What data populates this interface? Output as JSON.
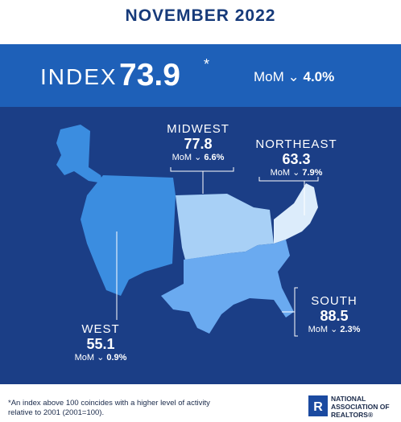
{
  "title": "NOVEMBER 2022",
  "index": {
    "label": "INDEX",
    "value": "73.9",
    "asterisk": "*",
    "mom_label": "MoM",
    "mom_value": "4.0%"
  },
  "regions": {
    "midwest": {
      "name": "MIDWEST",
      "value": "77.8",
      "mom_label": "MoM",
      "mom_value": "6.6%"
    },
    "northeast": {
      "name": "NORTHEAST",
      "value": "63.3",
      "mom_label": "MoM",
      "mom_value": "7.9%"
    },
    "south": {
      "name": "SOUTH",
      "value": "88.5",
      "mom_label": "MoM",
      "mom_value": "2.3%"
    },
    "west": {
      "name": "WEST",
      "value": "55.1",
      "mom_label": "MoM",
      "mom_value": "0.9%"
    }
  },
  "footnote": "*An index above 100 coincides with a higher level of activity relative to 2001 (2001=100).",
  "logo": {
    "line1": "NATIONAL",
    "line2": "ASSOCIATION OF",
    "line3": "REALTORS",
    "mark": "R"
  },
  "colors": {
    "dark_blue": "#1b3e86",
    "band_blue": "#1e60b8",
    "title_blue": "#163a7a",
    "west": "#3b8de0",
    "midwest": "#a8d0f6",
    "northeast": "#dcecfb",
    "south": "#6aaaf0"
  },
  "direction_icon": "chevron-down-icon"
}
